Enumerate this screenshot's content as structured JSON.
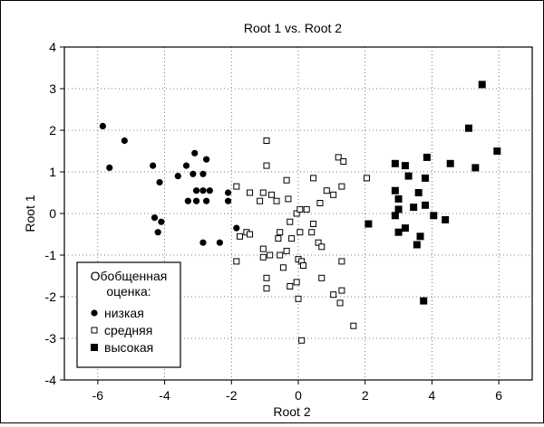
{
  "chart_data": {
    "type": "scatter",
    "title": "Root 1 vs. Root 2",
    "xlabel": "Root 2",
    "ylabel": "Root 1",
    "xlim": [
      -7,
      7
    ],
    "ylim": [
      -4,
      4
    ],
    "xticks": [
      "-6",
      "-4",
      "-2",
      "0",
      "2",
      "4",
      "6"
    ],
    "yticks": [
      "4",
      "3",
      "2",
      "1",
      "0",
      "-1",
      "-2",
      "-3",
      "-4"
    ],
    "grid": true,
    "legend": {
      "placement": "bottom-left",
      "title_lines": [
        "Обобщенная",
        "оценка:"
      ]
    },
    "series": [
      {
        "name": "низкая",
        "marker": "filled-circle",
        "color": "#000000",
        "points": [
          [
            -5.85,
            2.1
          ],
          [
            -5.2,
            1.75
          ],
          [
            -5.65,
            1.1
          ],
          [
            -4.35,
            1.15
          ],
          [
            -4.15,
            0.75
          ],
          [
            -3.6,
            0.9
          ],
          [
            -3.35,
            1.15
          ],
          [
            -3.1,
            1.45
          ],
          [
            -2.75,
            1.3
          ],
          [
            -3.15,
            0.95
          ],
          [
            -2.85,
            0.95
          ],
          [
            -3.05,
            0.55
          ],
          [
            -2.85,
            0.55
          ],
          [
            -2.65,
            0.55
          ],
          [
            -3.05,
            0.3
          ],
          [
            -2.75,
            0.3
          ],
          [
            -4.3,
            -0.1
          ],
          [
            -4.1,
            -0.2
          ],
          [
            -4.2,
            -0.45
          ],
          [
            -2.1,
            0.5
          ],
          [
            -2.1,
            0.3
          ],
          [
            -1.85,
            -0.35
          ],
          [
            -2.85,
            -0.7
          ],
          [
            -2.35,
            -0.7
          ],
          [
            -3.3,
            0.3
          ]
        ]
      },
      {
        "name": "средняя",
        "marker": "open-square",
        "color": "#000000",
        "points": [
          [
            -0.95,
            1.75
          ],
          [
            -0.95,
            1.15
          ],
          [
            -1.85,
            0.65
          ],
          [
            -1.45,
            0.5
          ],
          [
            -1.05,
            0.5
          ],
          [
            -0.8,
            0.45
          ],
          [
            -0.65,
            0.3
          ],
          [
            -0.3,
            0.35
          ],
          [
            -1.15,
            0.3
          ],
          [
            -0.35,
            0.8
          ],
          [
            -0.05,
            0.0
          ],
          [
            0.05,
            0.1
          ],
          [
            0.25,
            0.1
          ],
          [
            0.45,
            0.85
          ],
          [
            0.65,
            0.25
          ],
          [
            0.85,
            0.55
          ],
          [
            1.05,
            0.45
          ],
          [
            1.3,
            0.65
          ],
          [
            1.2,
            1.35
          ],
          [
            1.35,
            1.25
          ],
          [
            2.05,
            0.85
          ],
          [
            -0.25,
            -0.2
          ],
          [
            -0.55,
            -0.45
          ],
          [
            -1.55,
            -0.45
          ],
          [
            -1.75,
            -0.55
          ],
          [
            -1.45,
            -0.5
          ],
          [
            -0.6,
            -0.6
          ],
          [
            -0.2,
            -0.6
          ],
          [
            0.05,
            -0.45
          ],
          [
            0.4,
            -0.45
          ],
          [
            -1.05,
            -0.85
          ],
          [
            -1.05,
            -1.05
          ],
          [
            -0.85,
            -1.0
          ],
          [
            -0.55,
            -1.0
          ],
          [
            -0.35,
            -0.9
          ],
          [
            0.0,
            -1.1
          ],
          [
            0.1,
            -1.15
          ],
          [
            0.15,
            -1.25
          ],
          [
            0.6,
            -0.7
          ],
          [
            0.7,
            -0.8
          ],
          [
            -1.85,
            -1.15
          ],
          [
            -0.45,
            -1.3
          ],
          [
            -0.95,
            -1.55
          ],
          [
            -0.25,
            -1.75
          ],
          [
            -0.95,
            -1.8
          ],
          [
            0.7,
            -1.55
          ],
          [
            0.0,
            -2.05
          ],
          [
            1.05,
            -1.95
          ],
          [
            1.3,
            -1.85
          ],
          [
            1.3,
            -1.15
          ],
          [
            1.25,
            -2.15
          ],
          [
            1.65,
            -2.7
          ],
          [
            0.1,
            -3.05
          ],
          [
            -0.05,
            -1.65
          ],
          [
            0.45,
            -0.25
          ]
        ]
      },
      {
        "name": "высокая",
        "marker": "filled-square",
        "color": "#000000",
        "points": [
          [
            5.5,
            3.1
          ],
          [
            5.1,
            2.05
          ],
          [
            5.95,
            1.5
          ],
          [
            5.3,
            1.1
          ],
          [
            4.55,
            1.2
          ],
          [
            3.85,
            1.35
          ],
          [
            3.2,
            1.15
          ],
          [
            2.9,
            1.2
          ],
          [
            3.3,
            0.9
          ],
          [
            3.8,
            0.85
          ],
          [
            3.6,
            0.5
          ],
          [
            2.9,
            0.55
          ],
          [
            3.0,
            0.35
          ],
          [
            3.0,
            0.1
          ],
          [
            3.45,
            0.15
          ],
          [
            3.8,
            0.2
          ],
          [
            4.05,
            -0.05
          ],
          [
            4.4,
            -0.15
          ],
          [
            2.9,
            -0.05
          ],
          [
            2.1,
            -0.25
          ],
          [
            3.2,
            -0.35
          ],
          [
            3.0,
            -0.45
          ],
          [
            3.65,
            -0.55
          ],
          [
            3.55,
            -0.75
          ],
          [
            3.75,
            -2.1
          ]
        ]
      }
    ]
  }
}
